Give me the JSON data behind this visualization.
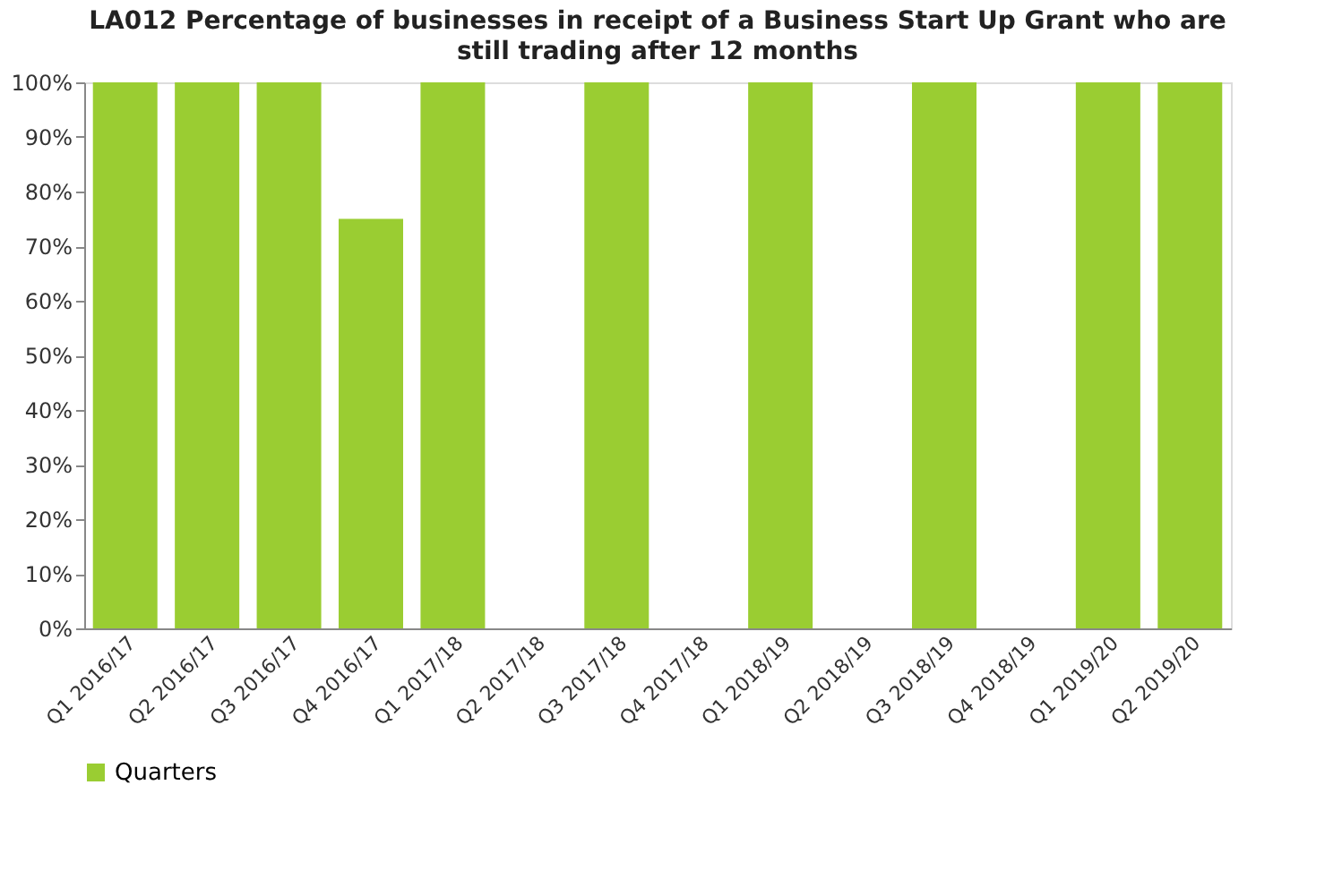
{
  "chart_data": {
    "type": "bar",
    "title": "LA012 Percentage of businesses in receipt of a Business Start Up Grant who are still trading after 12 months",
    "categories": [
      "Q1 2016/17",
      "Q2 2016/17",
      "Q3 2016/17",
      "Q4 2016/17",
      "Q1 2017/18",
      "Q2 2017/18",
      "Q3 2017/18",
      "Q4 2017/18",
      "Q1 2018/19",
      "Q2 2018/19",
      "Q3 2018/19",
      "Q4 2018/19",
      "Q1 2019/20",
      "Q2 2019/20"
    ],
    "series": [
      {
        "name": "Quarters",
        "color": "#9acd32",
        "values": [
          100,
          100,
          100,
          75,
          100,
          0,
          100,
          0,
          100,
          0,
          100,
          0,
          100,
          100
        ]
      }
    ],
    "ylim": [
      0,
      100
    ],
    "yticks": [
      {
        "value": 0,
        "label": "0%"
      },
      {
        "value": 10,
        "label": "10%"
      },
      {
        "value": 20,
        "label": "20%"
      },
      {
        "value": 30,
        "label": "30%"
      },
      {
        "value": 40,
        "label": "40%"
      },
      {
        "value": 50,
        "label": "50%"
      },
      {
        "value": 60,
        "label": "60%"
      },
      {
        "value": 70,
        "label": "70%"
      },
      {
        "value": 80,
        "label": "80%"
      },
      {
        "value": 90,
        "label": "90%"
      },
      {
        "value": 100,
        "label": "100%"
      }
    ],
    "grid": false,
    "legend": "bottom"
  }
}
